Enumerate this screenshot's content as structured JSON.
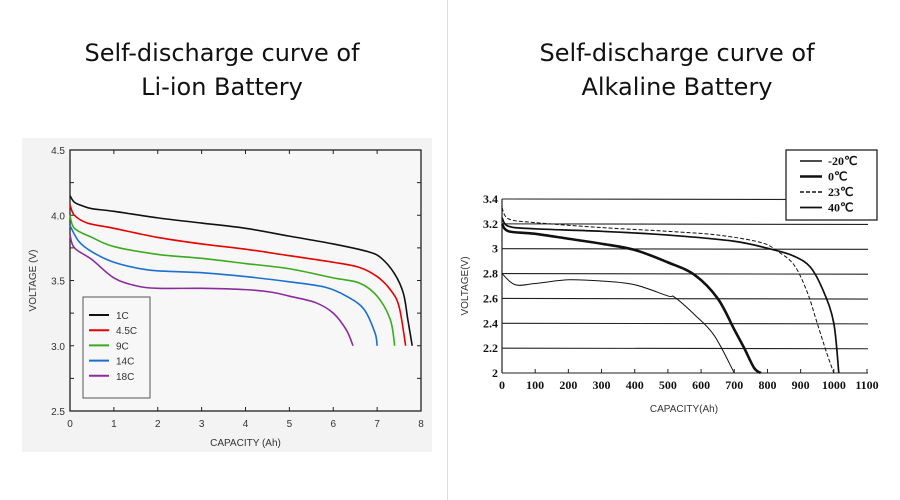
{
  "chart_data": [
    {
      "type": "line",
      "title": "Self-discharge curve of Li-ion Battery",
      "title_lines": [
        "Self-discharge curve of",
        "Li-ion Battery"
      ],
      "xlabel": "CAPACITY (Ah)",
      "ylabel": "VOLTAGE (V)",
      "xlim": [
        0,
        8
      ],
      "ylim": [
        2.5,
        4.5
      ],
      "xticks": [
        "0",
        "1",
        "2",
        "3",
        "4",
        "5",
        "6",
        "7",
        "8"
      ],
      "yticks": [
        "2.5",
        "3.0",
        "3.5",
        "4.0",
        "4.5"
      ],
      "legend_position": "bottom-left",
      "series": [
        {
          "name": "1C",
          "color": "#111111",
          "points": [
            [
              0,
              4.15
            ],
            [
              0.1,
              4.1
            ],
            [
              0.3,
              4.07
            ],
            [
              0.5,
              4.05
            ],
            [
              1,
              4.03
            ],
            [
              2,
              3.98
            ],
            [
              3,
              3.94
            ],
            [
              4,
              3.9
            ],
            [
              5,
              3.84
            ],
            [
              6,
              3.78
            ],
            [
              6.8,
              3.72
            ],
            [
              7.1,
              3.67
            ],
            [
              7.4,
              3.55
            ],
            [
              7.6,
              3.4
            ],
            [
              7.7,
              3.2
            ],
            [
              7.8,
              3.0
            ]
          ]
        },
        {
          "name": "4.5C",
          "color": "#e60000",
          "points": [
            [
              0,
              4.08
            ],
            [
              0.1,
              4.0
            ],
            [
              0.4,
              3.94
            ],
            [
              1,
              3.9
            ],
            [
              2,
              3.83
            ],
            [
              3,
              3.78
            ],
            [
              4,
              3.74
            ],
            [
              5,
              3.69
            ],
            [
              6,
              3.64
            ],
            [
              6.6,
              3.6
            ],
            [
              7,
              3.53
            ],
            [
              7.3,
              3.43
            ],
            [
              7.5,
              3.3
            ],
            [
              7.65,
              3.0
            ]
          ]
        },
        {
          "name": "9C",
          "color": "#3aaa1e",
          "points": [
            [
              0,
              4.0
            ],
            [
              0.1,
              3.9
            ],
            [
              0.5,
              3.83
            ],
            [
              1,
              3.76
            ],
            [
              2,
              3.7
            ],
            [
              3,
              3.67
            ],
            [
              4,
              3.63
            ],
            [
              5,
              3.59
            ],
            [
              6,
              3.52
            ],
            [
              6.6,
              3.48
            ],
            [
              7,
              3.38
            ],
            [
              7.3,
              3.2
            ],
            [
              7.4,
              3.0
            ]
          ]
        },
        {
          "name": "14C",
          "color": "#1a6fd0",
          "points": [
            [
              0,
              3.92
            ],
            [
              0.2,
              3.8
            ],
            [
              0.5,
              3.72
            ],
            [
              1,
              3.64
            ],
            [
              1.8,
              3.58
            ],
            [
              3,
              3.56
            ],
            [
              4,
              3.53
            ],
            [
              5,
              3.49
            ],
            [
              5.8,
              3.45
            ],
            [
              6.3,
              3.38
            ],
            [
              6.7,
              3.28
            ],
            [
              6.95,
              3.1
            ],
            [
              7.0,
              3.0
            ]
          ]
        },
        {
          "name": "18C",
          "color": "#8a2d9a",
          "points": [
            [
              0,
              3.85
            ],
            [
              0.1,
              3.75
            ],
            [
              0.5,
              3.66
            ],
            [
              1,
              3.52
            ],
            [
              1.5,
              3.46
            ],
            [
              2,
              3.44
            ],
            [
              3,
              3.44
            ],
            [
              4,
              3.43
            ],
            [
              4.6,
              3.41
            ],
            [
              5,
              3.38
            ],
            [
              5.6,
              3.33
            ],
            [
              6,
              3.25
            ],
            [
              6.3,
              3.12
            ],
            [
              6.45,
              3.0
            ]
          ]
        }
      ]
    },
    {
      "type": "line",
      "title": "Self-discharge curve of Alkaline Battery",
      "title_lines": [
        "Self-discharge curve of",
        "Alkaline Battery"
      ],
      "xlabel": "CAPACITY(Ah)",
      "ylabel": "VOLTAGE(V)",
      "xlim": [
        0,
        1100
      ],
      "ylim": [
        2,
        3.4
      ],
      "xticks": [
        "0",
        "100",
        "200",
        "300",
        "400",
        "500",
        "600",
        "700",
        "800",
        "900",
        "1000",
        "1100"
      ],
      "yticks": [
        "2",
        "2.2",
        "2.4",
        "2.6",
        "2.8",
        "3",
        "3.2",
        "3.4"
      ],
      "legend_position": "top-right",
      "series": [
        {
          "name": "-20℃",
          "style": "thin",
          "points": [
            [
              0,
              2.8
            ],
            [
              40,
              2.71
            ],
            [
              100,
              2.72
            ],
            [
              200,
              2.75
            ],
            [
              300,
              2.74
            ],
            [
              400,
              2.71
            ],
            [
              500,
              2.62
            ],
            [
              520,
              2.61
            ],
            [
              580,
              2.47
            ],
            [
              640,
              2.3
            ],
            [
              700,
              2.0
            ]
          ]
        },
        {
          "name": "0℃",
          "style": "thick",
          "points": [
            [
              0,
              3.2
            ],
            [
              20,
              3.14
            ],
            [
              100,
              3.12
            ],
            [
              200,
              3.08
            ],
            [
              300,
              3.04
            ],
            [
              400,
              2.99
            ],
            [
              500,
              2.89
            ],
            [
              580,
              2.79
            ],
            [
              650,
              2.6
            ],
            [
              700,
              2.35
            ],
            [
              730,
              2.2
            ],
            [
              760,
              2.04
            ],
            [
              780,
              2.0
            ]
          ]
        },
        {
          "name": "23℃",
          "style": "dashed",
          "points": [
            [
              0,
              3.33
            ],
            [
              20,
              3.24
            ],
            [
              100,
              3.21
            ],
            [
              300,
              3.17
            ],
            [
              500,
              3.14
            ],
            [
              650,
              3.11
            ],
            [
              780,
              3.05
            ],
            [
              830,
              2.98
            ],
            [
              880,
              2.87
            ],
            [
              920,
              2.65
            ],
            [
              950,
              2.4
            ],
            [
              980,
              2.15
            ],
            [
              1000,
              2.0
            ]
          ]
        },
        {
          "name": "40℃",
          "style": "medium",
          "points": [
            [
              0,
              3.25
            ],
            [
              20,
              3.18
            ],
            [
              100,
              3.16
            ],
            [
              300,
              3.14
            ],
            [
              500,
              3.11
            ],
            [
              700,
              3.06
            ],
            [
              820,
              2.99
            ],
            [
              880,
              2.94
            ],
            [
              930,
              2.85
            ],
            [
              970,
              2.65
            ],
            [
              1000,
              2.4
            ],
            [
              1015,
              2.0
            ]
          ]
        }
      ]
    }
  ]
}
